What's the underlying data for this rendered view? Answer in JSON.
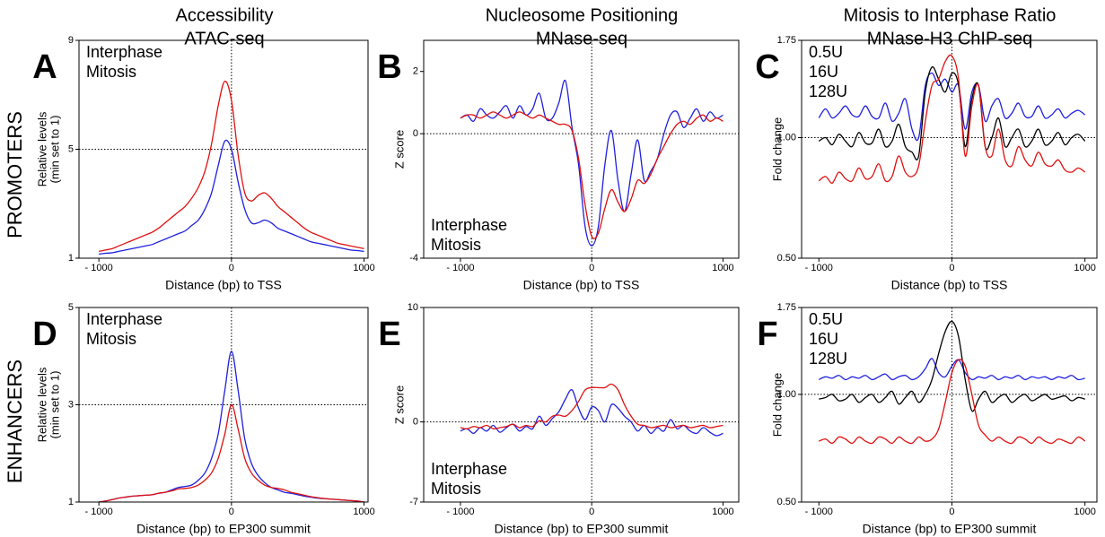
{
  "column_titles": [
    [
      "Accessibility",
      "ATAC-seq"
    ],
    [
      "Nucleosome Positioning",
      "MNase-seq"
    ],
    [
      "Mitosis to Interphase Ratio",
      "MNase-H3 ChIP-seq"
    ]
  ],
  "row_labels": [
    "PROMOTERS",
    "ENHANCERS"
  ],
  "chart_data": [
    {
      "type": "line",
      "panel": "A",
      "xlabel": "Distance (bp) to TSS",
      "ylabel": [
        "Relative levels",
        "(min set to 1)"
      ],
      "xlim": [
        -1150,
        1030
      ],
      "xticks": [
        {
          "value": -1000,
          "label": "- 1000"
        },
        0,
        1000
      ],
      "ylim": [
        1,
        9
      ],
      "yticks": [
        1,
        5,
        9
      ],
      "log": false,
      "hline": 5,
      "vline": 0,
      "legend": "upper left",
      "x": [
        -1000,
        -950,
        -900,
        -850,
        -800,
        -750,
        -700,
        -650,
        -600,
        -550,
        -500,
        -450,
        -400,
        -350,
        -300,
        -250,
        -200,
        -150,
        -100,
        -50,
        0,
        50,
        100,
        150,
        200,
        250,
        300,
        350,
        400,
        450,
        500,
        550,
        600,
        650,
        700,
        750,
        800,
        850,
        900,
        950,
        1000
      ],
      "series": [
        {
          "name": "Interphase",
          "color": "#1f1fe0",
          "values": [
            1.15,
            1.18,
            1.2,
            1.25,
            1.3,
            1.35,
            1.4,
            1.45,
            1.5,
            1.6,
            1.7,
            1.8,
            1.9,
            2.0,
            2.2,
            2.4,
            2.8,
            3.4,
            4.4,
            5.3,
            5.0,
            3.8,
            2.8,
            2.3,
            2.3,
            2.4,
            2.3,
            2.1,
            2.0,
            1.9,
            1.8,
            1.7,
            1.6,
            1.55,
            1.5,
            1.45,
            1.4,
            1.35,
            1.3,
            1.28,
            1.25
          ]
        },
        {
          "name": "Mitosis",
          "color": "#e01010",
          "values": [
            1.25,
            1.3,
            1.35,
            1.45,
            1.55,
            1.65,
            1.75,
            1.85,
            1.95,
            2.1,
            2.3,
            2.5,
            2.7,
            2.9,
            3.2,
            3.6,
            4.2,
            5.2,
            6.6,
            7.5,
            6.8,
            4.8,
            3.4,
            3.1,
            3.3,
            3.4,
            3.2,
            2.9,
            2.7,
            2.5,
            2.3,
            2.1,
            1.95,
            1.85,
            1.75,
            1.65,
            1.55,
            1.5,
            1.45,
            1.4,
            1.35
          ]
        }
      ]
    },
    {
      "type": "line",
      "panel": "B",
      "xlabel": "Distance (bp) to TSS",
      "ylabel": [
        "Z score"
      ],
      "xlim": [
        -1280,
        1120
      ],
      "xticks": [
        {
          "value": -1000,
          "label": "- 1000"
        },
        0,
        1000
      ],
      "ylim": [
        -4,
        3
      ],
      "yticks": [
        -4,
        0,
        2
      ],
      "log": false,
      "hline": 0,
      "vline": 0,
      "legend": "lower left",
      "x": [
        -1000,
        -950,
        -900,
        -850,
        -800,
        -750,
        -700,
        -650,
        -600,
        -550,
        -500,
        -450,
        -400,
        -350,
        -300,
        -250,
        -200,
        -150,
        -100,
        -50,
        0,
        50,
        100,
        150,
        200,
        250,
        300,
        350,
        400,
        450,
        500,
        550,
        600,
        650,
        700,
        750,
        800,
        850,
        900,
        950,
        1000
      ],
      "series": [
        {
          "name": "Interphase",
          "color": "#1f1fe0",
          "values": [
            0.5,
            0.6,
            0.4,
            0.8,
            0.6,
            0.5,
            0.7,
            0.9,
            0.5,
            0.9,
            0.6,
            0.8,
            1.3,
            0.5,
            0.5,
            1.0,
            1.7,
            0.2,
            -1.0,
            -3.0,
            -3.6,
            -3.0,
            -1.0,
            0.1,
            -1.5,
            -2.5,
            -1.3,
            -0.2,
            -1.5,
            -1.2,
            -0.8,
            0.0,
            0.6,
            0.7,
            0.2,
            0.5,
            0.8,
            0.4,
            0.7,
            0.5,
            0.6
          ]
        },
        {
          "name": "Mitosis",
          "color": "#e01010",
          "values": [
            0.5,
            0.6,
            0.6,
            0.5,
            0.6,
            0.7,
            0.6,
            0.5,
            0.6,
            0.7,
            0.6,
            0.5,
            0.6,
            0.5,
            0.4,
            0.3,
            0.3,
            0.1,
            -0.8,
            -2.3,
            -3.3,
            -3.2,
            -2.4,
            -1.8,
            -2.2,
            -2.5,
            -2.1,
            -1.5,
            -1.6,
            -1.3,
            -0.8,
            -0.4,
            0.0,
            0.3,
            0.4,
            0.3,
            0.5,
            0.6,
            0.4,
            0.5,
            0.4
          ]
        }
      ]
    },
    {
      "type": "line",
      "panel": "C",
      "xlabel": "Distance (bp) to TSS",
      "ylabel": [
        "Fold change"
      ],
      "xlim": [
        -1130,
        1090
      ],
      "xticks": [
        {
          "value": -1000,
          "label": "- 1000"
        },
        0,
        1000
      ],
      "ylim": [
        0.5,
        1.75
      ],
      "yticks": [
        {
          "value": 0.5,
          "label": "0.50"
        },
        {
          "value": 1,
          "label": "1.00"
        },
        1.75
      ],
      "log": true,
      "hline": 1,
      "vline": 0,
      "legend": "upper left",
      "x": [
        -1000,
        -950,
        -900,
        -850,
        -800,
        -750,
        -700,
        -650,
        -600,
        -550,
        -500,
        -450,
        -400,
        -350,
        -300,
        -250,
        -200,
        -150,
        -100,
        -50,
        0,
        50,
        100,
        150,
        200,
        250,
        300,
        350,
        400,
        450,
        500,
        550,
        600,
        650,
        700,
        750,
        800,
        850,
        900,
        950,
        1000
      ],
      "series": [
        {
          "name": "0.5U",
          "color": "#1f1fe0",
          "values": [
            1.12,
            1.18,
            1.12,
            1.15,
            1.2,
            1.14,
            1.13,
            1.2,
            1.13,
            1.12,
            1.22,
            1.1,
            1.15,
            1.25,
            1.05,
            1.0,
            1.35,
            1.45,
            1.35,
            1.4,
            1.3,
            1.35,
            1.05,
            1.3,
            1.35,
            1.1,
            1.2,
            1.25,
            1.12,
            1.15,
            1.22,
            1.13,
            1.13,
            1.2,
            1.12,
            1.14,
            1.18,
            1.12,
            1.15,
            1.17,
            1.14
          ]
        },
        {
          "name": "16U",
          "color": "#000000",
          "values": [
            0.98,
            1.0,
            0.96,
            1.02,
            0.98,
            0.95,
            1.03,
            0.97,
            0.97,
            1.05,
            0.95,
            0.98,
            1.08,
            0.95,
            0.92,
            0.9,
            1.3,
            1.5,
            1.4,
            1.3,
            1.45,
            1.35,
            0.95,
            1.25,
            1.35,
            0.95,
            1.0,
            1.12,
            0.95,
            1.0,
            1.05,
            0.95,
            0.98,
            1.05,
            0.96,
            0.98,
            1.03,
            0.96,
            1.0,
            1.02,
            0.98
          ]
        },
        {
          "name": "128U",
          "color": "#e01010",
          "values": [
            0.78,
            0.8,
            0.77,
            0.82,
            0.79,
            0.78,
            0.84,
            0.79,
            0.8,
            0.86,
            0.78,
            0.8,
            0.9,
            0.82,
            0.8,
            0.85,
            1.1,
            1.35,
            1.4,
            1.55,
            1.6,
            1.4,
            0.9,
            1.2,
            1.35,
            0.95,
            0.9,
            1.05,
            0.88,
            0.85,
            0.95,
            0.88,
            0.85,
            0.92,
            0.86,
            0.85,
            0.88,
            0.83,
            0.82,
            0.84,
            0.82
          ]
        }
      ]
    },
    {
      "type": "line",
      "panel": "D",
      "xlabel": "Distance (bp) to EP300 summit",
      "ylabel": [
        "Relative levels",
        "(min set to 1)"
      ],
      "xlim": [
        -1150,
        1030
      ],
      "xticks": [
        {
          "value": -1000,
          "label": "- 1000"
        },
        0,
        1000
      ],
      "ylim": [
        1,
        5
      ],
      "yticks": [
        1,
        3,
        5
      ],
      "log": false,
      "hline": 3,
      "vline": 0,
      "legend": "upper left",
      "x": [
        -1000,
        -950,
        -900,
        -850,
        -800,
        -750,
        -700,
        -650,
        -600,
        -550,
        -500,
        -450,
        -400,
        -350,
        -300,
        -250,
        -200,
        -150,
        -100,
        -50,
        0,
        50,
        100,
        150,
        200,
        250,
        300,
        350,
        400,
        450,
        500,
        550,
        600,
        650,
        700,
        750,
        800,
        850,
        900,
        950,
        1000
      ],
      "series": [
        {
          "name": "Interphase",
          "color": "#1f1fe0",
          "values": [
            1.0,
            1.02,
            1.05,
            1.08,
            1.1,
            1.12,
            1.13,
            1.14,
            1.15,
            1.18,
            1.2,
            1.25,
            1.3,
            1.32,
            1.35,
            1.45,
            1.6,
            1.9,
            2.4,
            3.3,
            4.1,
            3.3,
            2.3,
            1.8,
            1.55,
            1.4,
            1.3,
            1.25,
            1.2,
            1.18,
            1.15,
            1.12,
            1.1,
            1.08,
            1.07,
            1.06,
            1.05,
            1.04,
            1.03,
            1.02,
            1.0
          ]
        },
        {
          "name": "Mitosis",
          "color": "#e01010",
          "values": [
            1.0,
            1.02,
            1.05,
            1.08,
            1.1,
            1.12,
            1.13,
            1.14,
            1.15,
            1.18,
            1.2,
            1.23,
            1.27,
            1.28,
            1.3,
            1.35,
            1.45,
            1.6,
            1.9,
            2.4,
            3.0,
            2.5,
            1.9,
            1.6,
            1.45,
            1.35,
            1.3,
            1.28,
            1.25,
            1.2,
            1.17,
            1.14,
            1.11,
            1.09,
            1.07,
            1.06,
            1.05,
            1.04,
            1.03,
            1.02,
            1.0
          ]
        }
      ]
    },
    {
      "type": "line",
      "panel": "E",
      "xlabel": "Distance (bp) to EP300 summit",
      "ylabel": [
        "Z score"
      ],
      "xlim": [
        -1280,
        1120
      ],
      "xticks": [
        {
          "value": -1000,
          "label": "- 1000"
        },
        0,
        1000
      ],
      "ylim": [
        -7,
        10
      ],
      "yticks": [
        -7,
        0,
        10
      ],
      "log": false,
      "hline": 0,
      "vline": 0,
      "legend": "lower left",
      "x": [
        -1000,
        -950,
        -900,
        -850,
        -800,
        -750,
        -700,
        -650,
        -600,
        -550,
        -500,
        -450,
        -400,
        -350,
        -300,
        -250,
        -200,
        -150,
        -100,
        -50,
        0,
        50,
        100,
        150,
        200,
        250,
        300,
        350,
        400,
        450,
        500,
        550,
        600,
        650,
        700,
        750,
        800,
        850,
        900,
        950,
        1000
      ],
      "series": [
        {
          "name": "Interphase",
          "color": "#1f1fe0",
          "values": [
            -0.8,
            -0.6,
            -1.0,
            -0.5,
            -0.8,
            -0.3,
            -0.9,
            -0.5,
            -0.2,
            -0.8,
            -0.4,
            -0.6,
            0.5,
            -0.3,
            0.3,
            0.9,
            2.0,
            2.8,
            1.2,
            0.2,
            1.3,
            1.0,
            0.0,
            1.5,
            1.2,
            0.5,
            0.0,
            -0.8,
            -0.3,
            -1.0,
            -0.5,
            -0.8,
            0.2,
            -0.6,
            -0.3,
            -0.8,
            -1.0,
            -0.5,
            -0.9,
            -1.2,
            -1.0
          ]
        },
        {
          "name": "Mitosis",
          "color": "#e01010",
          "values": [
            -0.5,
            -0.6,
            -0.4,
            -0.5,
            -0.3,
            -0.6,
            -0.5,
            -0.4,
            -0.2,
            -0.5,
            -0.3,
            -0.4,
            0.1,
            0.0,
            0.5,
            0.6,
            0.5,
            1.0,
            1.8,
            2.8,
            3.0,
            3.0,
            3.0,
            3.3,
            2.8,
            1.5,
            0.5,
            -0.2,
            -0.3,
            -0.5,
            -0.4,
            -0.3,
            -0.5,
            -0.4,
            -0.3,
            -0.5,
            -0.4,
            -0.3,
            -0.5,
            -0.4,
            -0.3
          ]
        }
      ]
    },
    {
      "type": "line",
      "panel": "F",
      "xlabel": "Distance (bp) to EP300 summit",
      "ylabel": [
        "Fold change"
      ],
      "xlim": [
        -1130,
        1090
      ],
      "xticks": [
        {
          "value": -1000,
          "label": "- 1000"
        },
        0,
        1000
      ],
      "ylim": [
        0.5,
        1.75
      ],
      "yticks": [
        {
          "value": 0.5,
          "label": "0.50"
        },
        {
          "value": 1,
          "label": "1.00"
        },
        1.75
      ],
      "log": true,
      "hline": 1,
      "vline": 0,
      "legend": "upper left",
      "x": [
        -1000,
        -950,
        -900,
        -850,
        -800,
        -750,
        -700,
        -650,
        -600,
        -550,
        -500,
        -450,
        -400,
        -350,
        -300,
        -250,
        -200,
        -150,
        -100,
        -50,
        0,
        50,
        100,
        150,
        200,
        250,
        300,
        350,
        400,
        450,
        500,
        550,
        600,
        650,
        700,
        750,
        800,
        850,
        900,
        950,
        1000
      ],
      "series": [
        {
          "name": "0.5U",
          "color": "#1f1fe0",
          "values": [
            1.1,
            1.12,
            1.11,
            1.13,
            1.1,
            1.12,
            1.11,
            1.13,
            1.1,
            1.12,
            1.14,
            1.1,
            1.12,
            1.13,
            1.1,
            1.12,
            1.18,
            1.26,
            1.15,
            1.12,
            1.2,
            1.25,
            1.15,
            1.1,
            1.12,
            1.11,
            1.13,
            1.1,
            1.12,
            1.11,
            1.13,
            1.1,
            1.12,
            1.11,
            1.12,
            1.1,
            1.12,
            1.11,
            1.13,
            1.1,
            1.11
          ]
        },
        {
          "name": "16U",
          "color": "#000000",
          "values": [
            0.97,
            0.98,
            1.0,
            0.96,
            0.97,
            1.0,
            0.95,
            0.98,
            1.0,
            0.95,
            0.98,
            1.02,
            0.94,
            0.98,
            1.02,
            0.95,
            1.0,
            1.1,
            1.3,
            1.5,
            1.6,
            1.45,
            1.1,
            0.9,
            0.97,
            1.02,
            0.95,
            0.98,
            1.0,
            0.95,
            0.98,
            1.0,
            0.96,
            0.98,
            1.0,
            0.97,
            0.98,
            0.99,
            0.96,
            0.98,
            0.97
          ]
        },
        {
          "name": "128U",
          "color": "#e01010",
          "values": [
            0.74,
            0.75,
            0.73,
            0.76,
            0.75,
            0.73,
            0.76,
            0.74,
            0.73,
            0.76,
            0.75,
            0.73,
            0.76,
            0.74,
            0.73,
            0.76,
            0.74,
            0.75,
            0.8,
            0.95,
            1.15,
            1.25,
            1.2,
            1.0,
            0.82,
            0.77,
            0.74,
            0.76,
            0.74,
            0.73,
            0.76,
            0.75,
            0.73,
            0.76,
            0.74,
            0.73,
            0.75,
            0.74,
            0.73,
            0.76,
            0.74
          ]
        }
      ]
    }
  ]
}
